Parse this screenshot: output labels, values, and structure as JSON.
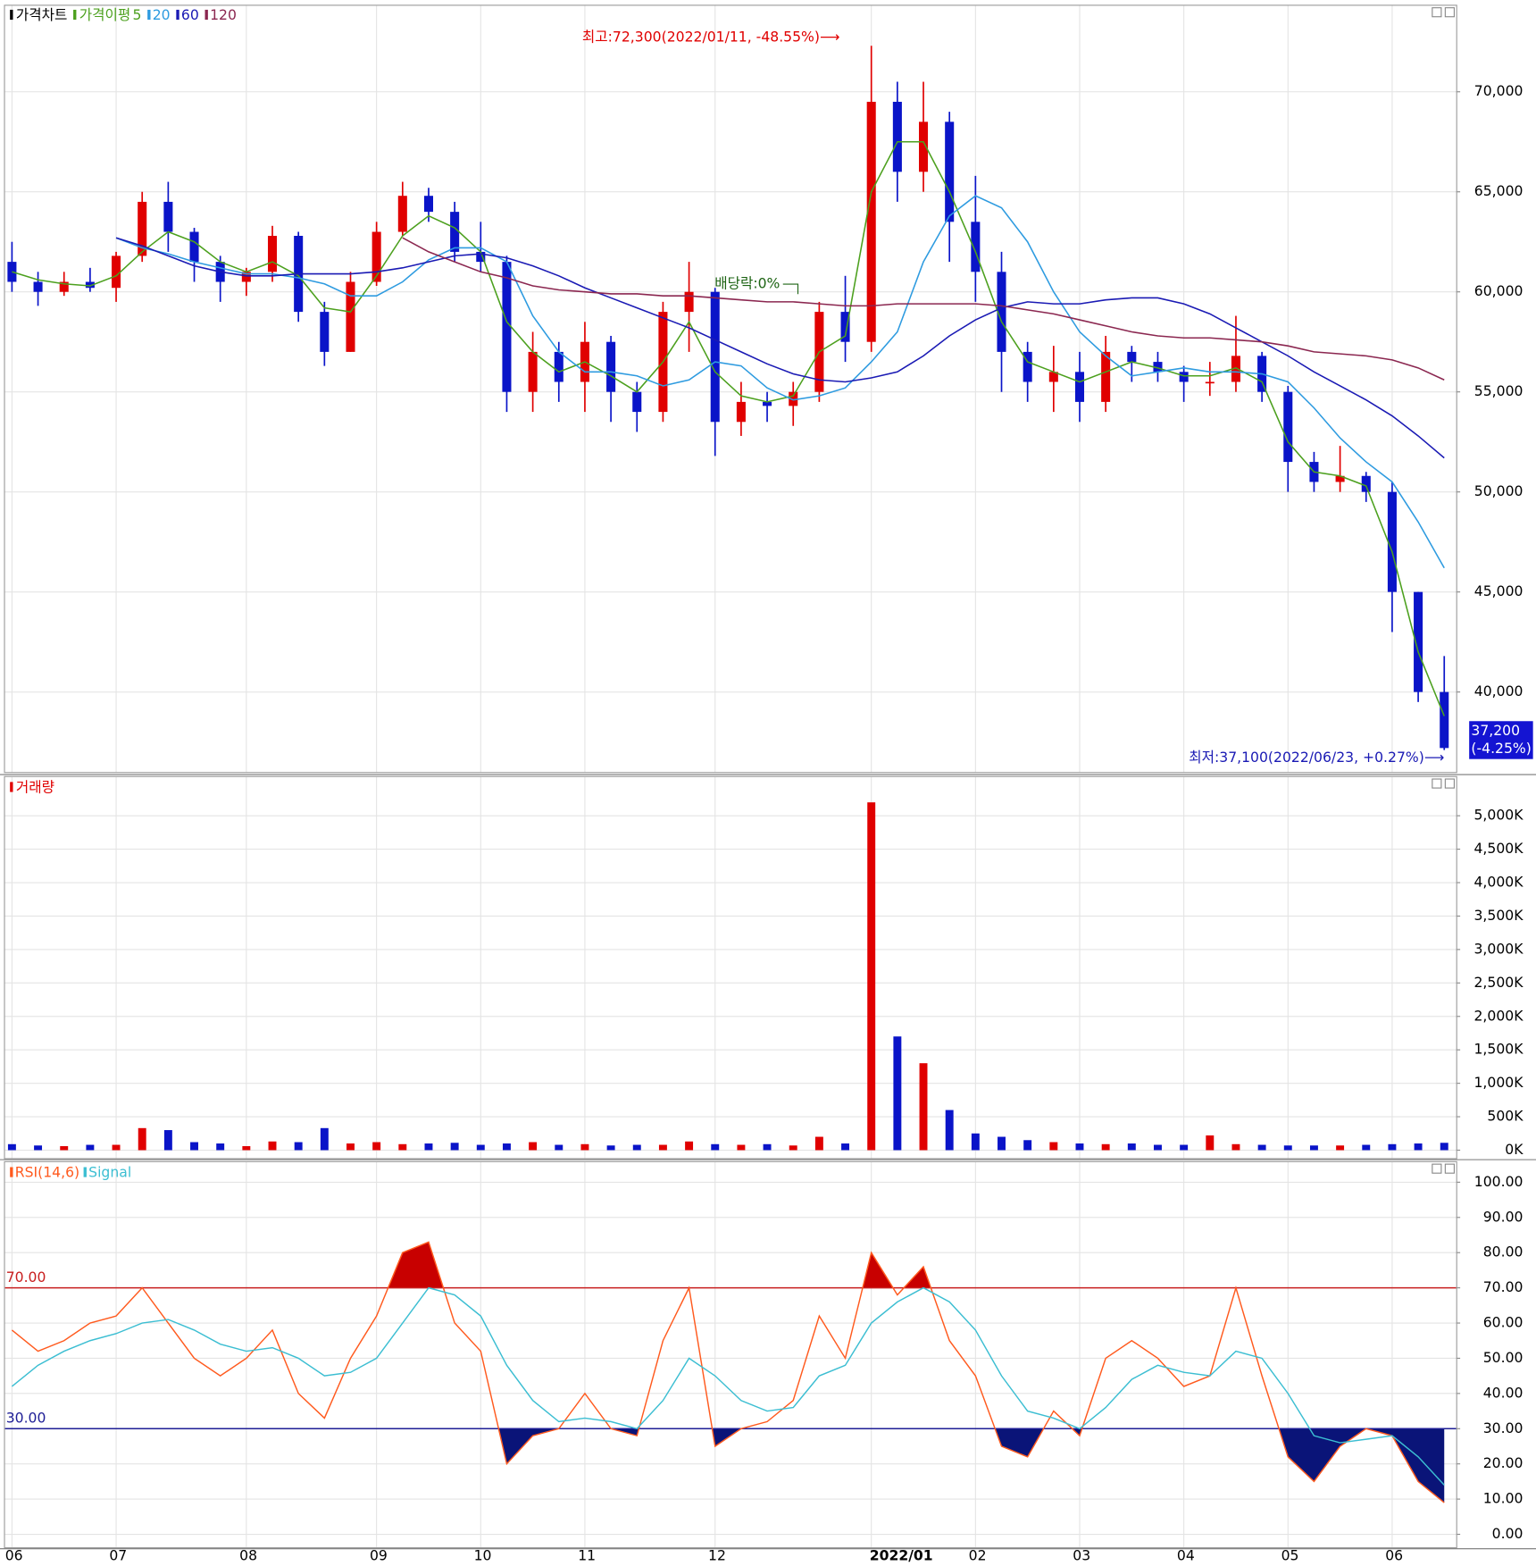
{
  "chart_data": [
    {
      "type": "candlestick",
      "title": "가격차트",
      "ma_label": "가격이평",
      "categories": [
        "06",
        null,
        null,
        null,
        "07",
        null,
        null,
        null,
        null,
        "08",
        null,
        null,
        null,
        null,
        "09",
        null,
        null,
        null,
        "10",
        null,
        null,
        null,
        "11",
        null,
        null,
        null,
        null,
        "12",
        null,
        null,
        null,
        null,
        null,
        "2022/01",
        null,
        null,
        null,
        "02",
        null,
        null,
        null,
        "03",
        null,
        null,
        null,
        "04",
        null,
        null,
        null,
        "05",
        null,
        null,
        null,
        "06",
        null,
        null
      ],
      "open": [
        61500,
        60500,
        60000,
        60500,
        60200,
        61800,
        64500,
        63000,
        61500,
        60500,
        61000,
        62800,
        59000,
        57000,
        60500,
        63000,
        64800,
        64000,
        62000,
        61500,
        55000,
        57000,
        55500,
        57500,
        55000,
        54000,
        59000,
        60000,
        53500,
        54500,
        54300,
        55000,
        59000,
        57500,
        69500,
        66000,
        68500,
        63500,
        61000,
        57000,
        55500,
        56000,
        54500,
        57000,
        56500,
        56000,
        55500,
        55500,
        56800,
        55000,
        51500,
        50500,
        50800,
        50000,
        45000,
        40000
      ],
      "high": [
        62500,
        61000,
        61000,
        61200,
        62000,
        65000,
        65500,
        63200,
        61800,
        61200,
        63300,
        63000,
        59500,
        61000,
        63500,
        65500,
        65200,
        64500,
        63500,
        61800,
        58000,
        57500,
        58500,
        57800,
        55500,
        59500,
        61500,
        60200,
        55500,
        55000,
        55500,
        59500,
        60800,
        72300,
        70500,
        70500,
        69000,
        65800,
        62000,
        57500,
        57300,
        57000,
        57800,
        57300,
        57000,
        56300,
        56500,
        58800,
        57000,
        55300,
        52000,
        52300,
        51000,
        50500,
        45000,
        41800
      ],
      "low": [
        60000,
        59300,
        59800,
        60000,
        59500,
        61500,
        62000,
        60500,
        59500,
        59800,
        60500,
        58500,
        56300,
        57000,
        60300,
        62800,
        63500,
        61500,
        61000,
        54000,
        54000,
        54500,
        54000,
        53500,
        53000,
        53500,
        57000,
        51800,
        52800,
        53500,
        53300,
        54500,
        56500,
        57000,
        64500,
        65000,
        61500,
        59500,
        55000,
        54500,
        54000,
        53500,
        54000,
        55500,
        55500,
        54500,
        54800,
        55000,
        54500,
        50000,
        50000,
        50000,
        49500,
        43000,
        39500,
        37100
      ],
      "close": [
        60500,
        60000,
        60500,
        60200,
        61800,
        64500,
        63000,
        61500,
        60500,
        61000,
        62800,
        59000,
        57000,
        60500,
        63000,
        64800,
        64000,
        62000,
        61500,
        55000,
        57000,
        55500,
        57500,
        55000,
        54000,
        59000,
        60000,
        53500,
        54500,
        54300,
        55000,
        59000,
        57500,
        69500,
        66000,
        68500,
        63500,
        61000,
        57000,
        55500,
        56000,
        54500,
        57000,
        56500,
        56000,
        55500,
        55500,
        56800,
        55000,
        51500,
        50500,
        50800,
        50000,
        45000,
        40000,
        37200
      ],
      "up_color": "#e00000",
      "down_color": "#0a14c8",
      "moving_averages": [
        {
          "name": "5",
          "color": "#4ca01e",
          "values": [
            61000,
            60600,
            60400,
            60300,
            60800,
            62000,
            63000,
            62500,
            61500,
            61000,
            61500,
            60800,
            59200,
            59000,
            60800,
            62800,
            63800,
            63200,
            62000,
            58500,
            57000,
            56000,
            56500,
            55800,
            55000,
            56500,
            58500,
            56000,
            54800,
            54500,
            54800,
            57000,
            57800,
            65000,
            67500,
            67500,
            65000,
            62000,
            58500,
            56500,
            56000,
            55500,
            56000,
            56500,
            56200,
            55800,
            55800,
            56200,
            55500,
            52500,
            51000,
            50800,
            50300,
            47000,
            42000,
            38800
          ]
        },
        {
          "name": "20",
          "color": "#2e9be0",
          "values": [
            null,
            null,
            null,
            null,
            62700,
            62200,
            61900,
            61500,
            61200,
            60900,
            60900,
            60700,
            60400,
            59800,
            59800,
            60500,
            61600,
            62200,
            62200,
            61500,
            58800,
            57000,
            56000,
            56000,
            55800,
            55300,
            55600,
            56500,
            56300,
            55200,
            54600,
            54800,
            55200,
            56500,
            58000,
            61500,
            63800,
            64800,
            64200,
            62500,
            60000,
            58000,
            56800,
            55800,
            56000,
            56200,
            56000,
            56000,
            55900,
            55500,
            54200,
            52700,
            51500,
            50500,
            48500,
            46200
          ]
        },
        {
          "name": "60",
          "color": "#1a1ab4",
          "values": [
            null,
            null,
            null,
            null,
            62700,
            62300,
            61800,
            61300,
            61000,
            60800,
            60800,
            60900,
            60900,
            60900,
            61000,
            61200,
            61500,
            61800,
            61900,
            61700,
            61300,
            60800,
            60200,
            59700,
            59200,
            58700,
            58200,
            57600,
            57000,
            56400,
            55900,
            55600,
            55500,
            55700,
            56000,
            56800,
            57800,
            58600,
            59200,
            59500,
            59400,
            59400,
            59600,
            59700,
            59700,
            59400,
            58900,
            58200,
            57500,
            56800,
            56000,
            55300,
            54600,
            53800,
            52800,
            51700
          ]
        },
        {
          "name": "120",
          "color": "#8b2750",
          "values": [
            null,
            null,
            null,
            null,
            null,
            null,
            null,
            null,
            null,
            null,
            null,
            null,
            null,
            null,
            null,
            62700,
            62000,
            61500,
            61000,
            60700,
            60300,
            60100,
            60000,
            59900,
            59900,
            59800,
            59800,
            59700,
            59600,
            59500,
            59500,
            59400,
            59300,
            59300,
            59400,
            59400,
            59400,
            59400,
            59300,
            59100,
            58900,
            58600,
            58300,
            58000,
            57800,
            57700,
            57700,
            57600,
            57500,
            57300,
            57000,
            56900,
            56800,
            56600,
            56200,
            55600
          ]
        }
      ],
      "ylim": [
        36000,
        74300
      ],
      "yticks": [
        {
          "value": 40000,
          "label": "40,000"
        },
        {
          "value": 45000,
          "label": "45,000"
        },
        {
          "value": 50000,
          "label": "50,000"
        },
        {
          "value": 55000,
          "label": "55,000"
        },
        {
          "value": 60000,
          "label": "60,000"
        },
        {
          "value": 65000,
          "label": "65,000"
        },
        {
          "value": 70000,
          "label": "70,000"
        }
      ],
      "grid": true,
      "annotations": {
        "high": "최고:72,300(2022/01/11, -48.55%)⟶",
        "low": "최저:37,100(2022/06/23, +0.27%)⟶",
        "dividend": "배당락:0%",
        "last_price": "37,200",
        "last_change": "(-4.25%)"
      }
    },
    {
      "type": "bar",
      "title": "거래량",
      "values": [
        90,
        70,
        60,
        80,
        80,
        330,
        300,
        120,
        100,
        60,
        130,
        120,
        330,
        100,
        120,
        90,
        100,
        110,
        80,
        100,
        120,
        80,
        90,
        70,
        80,
        80,
        130,
        90,
        80,
        90,
        70,
        200,
        100,
        5200,
        1700,
        1300,
        600,
        250,
        200,
        150,
        120,
        100,
        90,
        100,
        80,
        80,
        220,
        90,
        80,
        70,
        70,
        70,
        80,
        90,
        100,
        110
      ],
      "ylim": [
        0,
        5400
      ],
      "yticks": [
        {
          "value": 0,
          "label": "0K"
        },
        {
          "value": 500,
          "label": "500K"
        },
        {
          "value": 1000,
          "label": "1,000K"
        },
        {
          "value": 1500,
          "label": "1,500K"
        },
        {
          "value": 2000,
          "label": "2,000K"
        },
        {
          "value": 2500,
          "label": "2,500K"
        },
        {
          "value": 3000,
          "label": "3,000K"
        },
        {
          "value": 3500,
          "label": "3,500K"
        },
        {
          "value": 4000,
          "label": "4,000K"
        },
        {
          "value": 4500,
          "label": "4,500K"
        },
        {
          "value": 5000,
          "label": "5,000K"
        }
      ],
      "grid": true
    },
    {
      "type": "line",
      "series": [
        {
          "name": "RSI(14,6)",
          "color": "#ff5a1e",
          "values": [
            58,
            52,
            55,
            60,
            62,
            70,
            60,
            50,
            45,
            50,
            58,
            40,
            33,
            50,
            62,
            80,
            83,
            60,
            52,
            20,
            28,
            30,
            40,
            30,
            28,
            55,
            70,
            25,
            30,
            32,
            38,
            62,
            50,
            80,
            68,
            76,
            55,
            45,
            25,
            22,
            35,
            28,
            50,
            55,
            50,
            42,
            45,
            70,
            45,
            22,
            15,
            25,
            30,
            28,
            15,
            9
          ]
        },
        {
          "name": "Signal",
          "color": "#3cbed2",
          "values": [
            42,
            48,
            52,
            55,
            57,
            60,
            61,
            58,
            54,
            52,
            53,
            50,
            45,
            46,
            50,
            60,
            70,
            68,
            62,
            48,
            38,
            32,
            33,
            32,
            30,
            38,
            50,
            45,
            38,
            35,
            36,
            45,
            48,
            60,
            66,
            70,
            66,
            58,
            45,
            35,
            33,
            30,
            36,
            44,
            48,
            46,
            45,
            52,
            50,
            40,
            28,
            26,
            27,
            28,
            22,
            14
          ]
        }
      ],
      "levels": [
        {
          "value": 70,
          "label": "70.00",
          "color": "#c81e1e",
          "fill": "#c80000"
        },
        {
          "value": 30,
          "label": "30.00",
          "color": "#1e1e96",
          "fill": "#0a1478"
        }
      ],
      "ylim": [
        0,
        104
      ],
      "yticks": [
        {
          "value": 0,
          "label": "0.00"
        },
        {
          "value": 10,
          "label": "10.00"
        },
        {
          "value": 20,
          "label": "20.00"
        },
        {
          "value": 30,
          "label": "30.00"
        },
        {
          "value": 40,
          "label": "40.00"
        },
        {
          "value": 50,
          "label": "50.00"
        },
        {
          "value": 60,
          "label": "60.00"
        },
        {
          "value": 70,
          "label": "70.00"
        },
        {
          "value": 80,
          "label": "80.00"
        },
        {
          "value": 90,
          "label": "90.00"
        },
        {
          "value": 100,
          "label": "100.00"
        }
      ],
      "grid": true
    }
  ]
}
